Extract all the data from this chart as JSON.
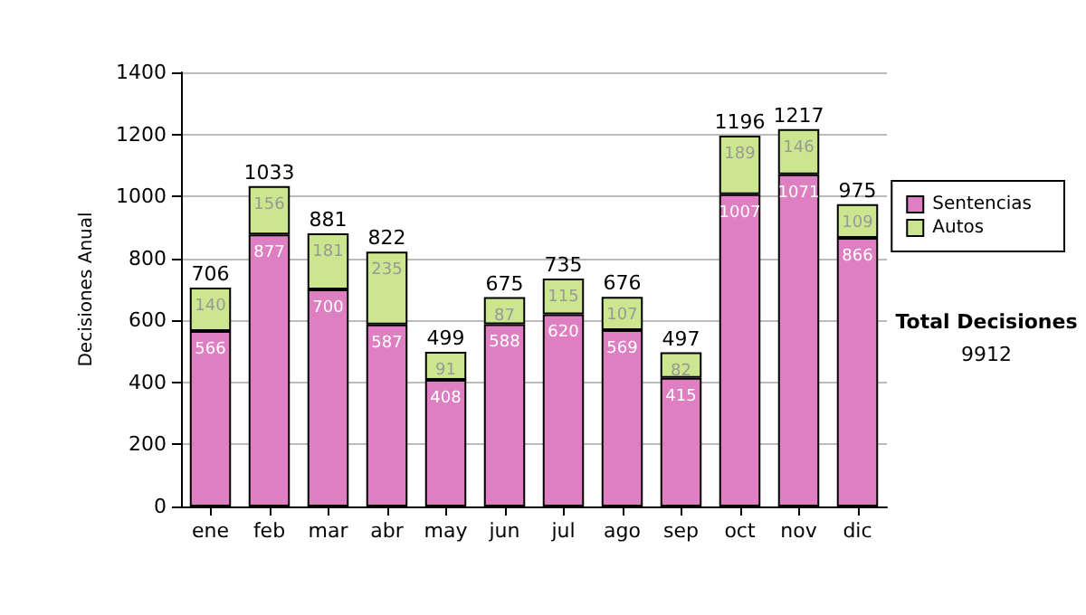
{
  "chart_data": {
    "type": "bar",
    "stacked": true,
    "ylabel": "Decisiones Anual",
    "categories": [
      "ene",
      "feb",
      "mar",
      "abr",
      "may",
      "jun",
      "jul",
      "ago",
      "sep",
      "oct",
      "nov",
      "dic"
    ],
    "series": [
      {
        "name": "Sentencias",
        "color": "#dd7fc0",
        "values": [
          566,
          877,
          700,
          587,
          408,
          588,
          620,
          569,
          415,
          1007,
          1071,
          866
        ]
      },
      {
        "name": "Autos",
        "color": "#cce68f",
        "values": [
          140,
          156,
          181,
          235,
          91,
          87,
          115,
          107,
          82,
          189,
          146,
          109
        ]
      }
    ],
    "data_labels": true,
    "totals": [
      "706",
      "1033",
      "881",
      "822",
      "499",
      "675",
      "735",
      "676",
      "497",
      "1196",
      "1217",
      "975"
    ],
    "ylim": [
      0,
      1400
    ],
    "yticks": [
      0,
      200,
      400,
      600,
      800,
      1000,
      1200,
      1400
    ],
    "grid": "y",
    "legend": "right",
    "annotations": [
      "Total Decisiones",
      "9912"
    ]
  }
}
